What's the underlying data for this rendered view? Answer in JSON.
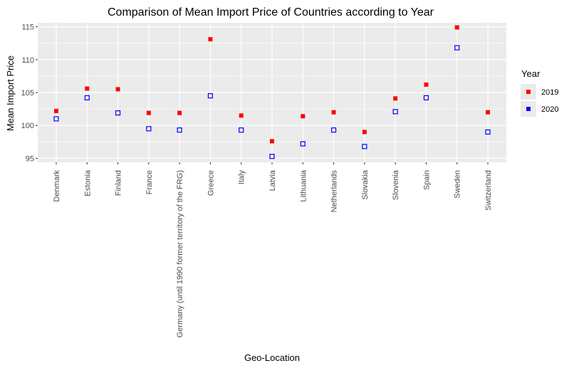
{
  "chart_data": {
    "type": "scatter",
    "title": "Comparison of Mean Import Price of Countries according to Year",
    "xlabel": "Geo-Location",
    "ylabel": "Mean Import Price",
    "categories": [
      "Denmark",
      "Estonia",
      "Finland",
      "France",
      "Germany (until 1990 former territory of the FRG)",
      "Greece",
      "Italy",
      "Latvia",
      "Lithuania",
      "Netherlands",
      "Slovakia",
      "Slovenia",
      "Spain",
      "Sweden",
      "Switzerland"
    ],
    "ylim": [
      94.4,
      115.6
    ],
    "yticks": [
      95,
      100,
      105,
      110,
      115
    ],
    "ytick_labels": [
      "95",
      "100",
      "105",
      "110",
      "115"
    ],
    "grid": true,
    "legend": {
      "title": "Year",
      "placement": "right"
    },
    "series": [
      {
        "name": "2019",
        "color": "#ff0000",
        "marker": "filled-square",
        "values": [
          102.2,
          105.6,
          105.5,
          101.9,
          101.9,
          113.1,
          101.5,
          97.6,
          101.4,
          102.0,
          99.0,
          104.1,
          106.2,
          114.9,
          102.0
        ]
      },
      {
        "name": "2020",
        "color": "#0000ff",
        "marker": "open-square",
        "values": [
          101.0,
          104.2,
          101.9,
          99.5,
          99.3,
          104.5,
          99.3,
          95.3,
          97.2,
          99.3,
          96.8,
          102.1,
          104.2,
          111.8,
          99.0
        ]
      }
    ]
  }
}
